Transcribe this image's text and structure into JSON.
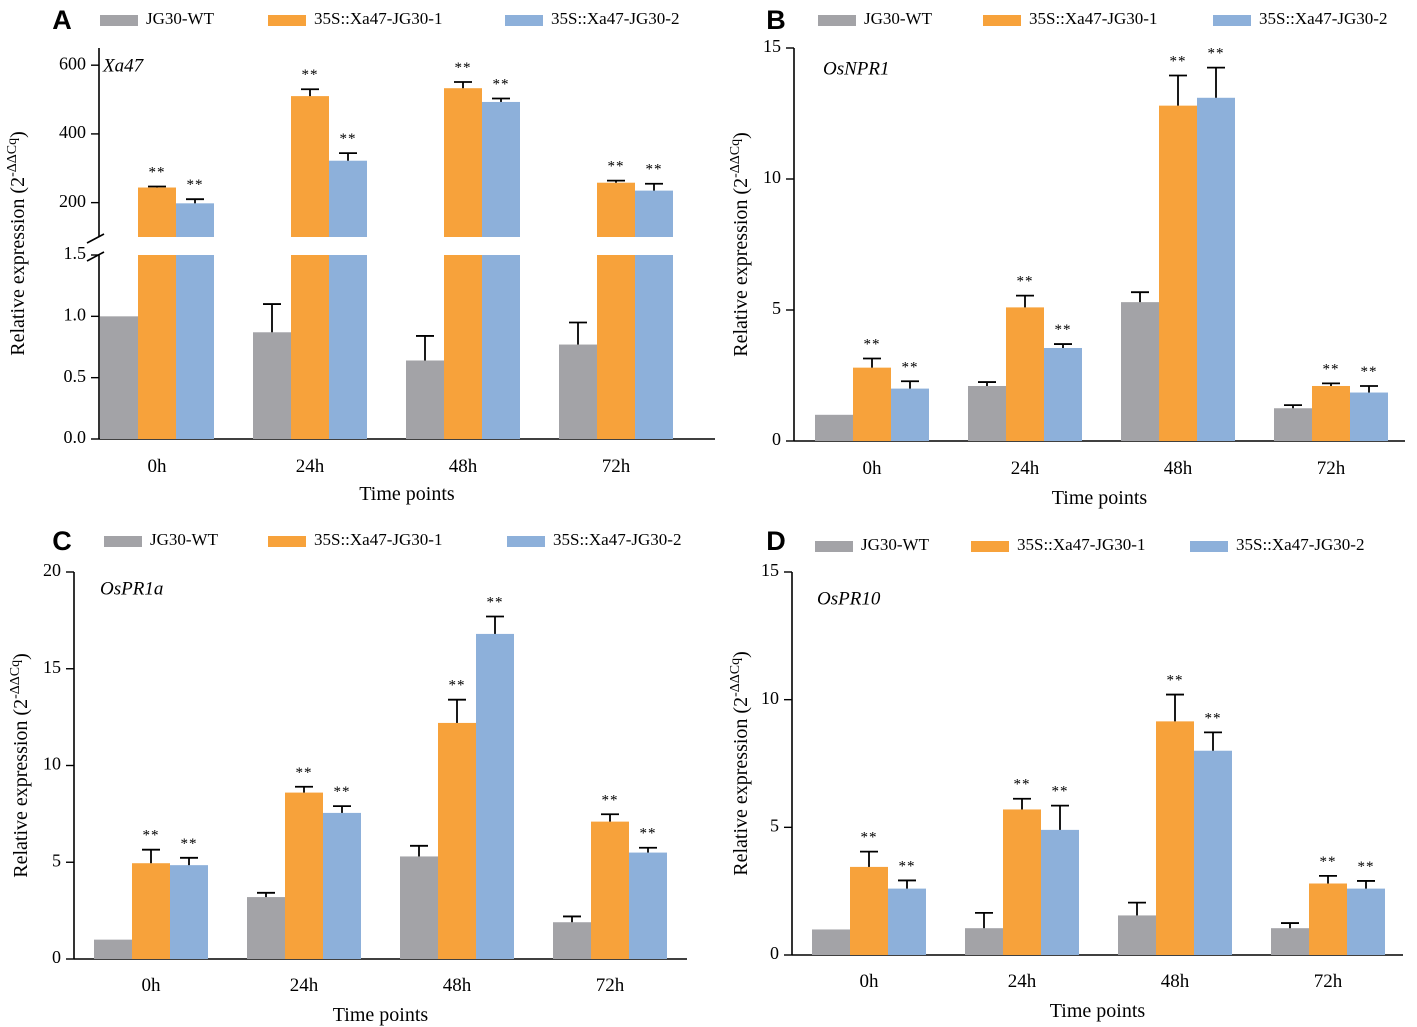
{
  "legend": [
    "JG30-WT",
    "35S::Xa47-JG30-1",
    "35S::Xa47-JG30-2"
  ],
  "colors": [
    "#a3a3a7",
    "#f7a23b",
    "#8db0da"
  ],
  "chart_data": [
    {
      "panel": "A",
      "type": "bar",
      "gene": "Xa47",
      "xlabel": "Time points",
      "ylabel": "Relative expression (2",
      "ylabel_sup": "-ΔΔCq",
      "ylabel_close": ")",
      "categories": [
        "0h",
        "24h",
        "48h",
        "72h"
      ],
      "broken_axis": true,
      "lower_ylim": [
        0,
        1.5
      ],
      "lower_ticks": [
        "0.0",
        "0.5",
        "1.0",
        "1.5"
      ],
      "upper_ylim": [
        100,
        650
      ],
      "upper_ticks": [
        "200",
        "400",
        "600"
      ],
      "series": [
        {
          "name": "JG30-WT",
          "values": [
            1.0,
            0.87,
            0.64,
            0.77
          ],
          "errors": [
            0.0,
            0.23,
            0.2,
            0.18
          ],
          "sig": [
            "",
            "",
            "",
            ""
          ]
        },
        {
          "name": "35S::Xa47-JG30-1",
          "values": [
            244,
            510,
            533,
            258
          ],
          "errors": [
            3,
            20,
            18,
            6
          ],
          "sig": [
            "**",
            "**",
            "**",
            "**"
          ]
        },
        {
          "name": "35S::Xa47-JG30-2",
          "values": [
            198,
            322,
            493,
            235
          ],
          "errors": [
            12,
            22,
            10,
            20
          ],
          "sig": [
            "**",
            "**",
            "**",
            "**"
          ]
        }
      ]
    },
    {
      "panel": "B",
      "type": "bar",
      "gene": "OsNPR1",
      "xlabel": "Time points",
      "ylabel": "Relative expression (2",
      "ylabel_sup": "-ΔΔCq",
      "ylabel_close": ")",
      "categories": [
        "0h",
        "24h",
        "48h",
        "72h"
      ],
      "ylim": [
        0,
        15
      ],
      "yticks": [
        0,
        5,
        10,
        15
      ],
      "series": [
        {
          "name": "JG30-WT",
          "values": [
            1.0,
            2.1,
            5.3,
            1.25
          ],
          "errors": [
            0.0,
            0.15,
            0.38,
            0.12
          ],
          "sig": [
            "",
            "",
            "",
            ""
          ]
        },
        {
          "name": "35S::Xa47-JG30-1",
          "values": [
            2.8,
            5.1,
            12.8,
            2.1
          ],
          "errors": [
            0.35,
            0.45,
            1.15,
            0.1
          ],
          "sig": [
            "**",
            "**",
            "**",
            "**"
          ]
        },
        {
          "name": "35S::Xa47-JG30-2",
          "values": [
            2.0,
            3.55,
            13.1,
            1.85
          ],
          "errors": [
            0.28,
            0.15,
            1.15,
            0.25
          ],
          "sig": [
            "**",
            "**",
            "**",
            "**"
          ]
        }
      ]
    },
    {
      "panel": "C",
      "type": "bar",
      "gene": "OsPR1a",
      "xlabel": "Time points",
      "ylabel": "Relative expression (2",
      "ylabel_sup": "-ΔΔCq",
      "ylabel_close": ")",
      "categories": [
        "0h",
        "24h",
        "48h",
        "72h"
      ],
      "ylim": [
        0,
        20
      ],
      "yticks": [
        0,
        5,
        10,
        15,
        20
      ],
      "series": [
        {
          "name": "JG30-WT",
          "values": [
            1.0,
            3.2,
            5.3,
            1.9
          ],
          "errors": [
            0.0,
            0.22,
            0.55,
            0.3
          ],
          "sig": [
            "",
            "",
            "",
            ""
          ]
        },
        {
          "name": "35S::Xa47-JG30-1",
          "values": [
            4.95,
            8.6,
            12.2,
            7.1
          ],
          "errors": [
            0.7,
            0.3,
            1.2,
            0.38
          ],
          "sig": [
            "**",
            "**",
            "**",
            "**"
          ]
        },
        {
          "name": "35S::Xa47-JG30-2",
          "values": [
            4.85,
            7.55,
            16.8,
            5.5
          ],
          "errors": [
            0.38,
            0.35,
            0.9,
            0.25
          ],
          "sig": [
            "**",
            "**",
            "**",
            "**"
          ]
        }
      ]
    },
    {
      "panel": "D",
      "type": "bar",
      "gene": "OsPR10",
      "xlabel": "Time points",
      "ylabel": "Relative expression (2",
      "ylabel_sup": "-ΔΔCq",
      "ylabel_close": ")",
      "categories": [
        "0h",
        "24h",
        "48h",
        "72h"
      ],
      "ylim": [
        0,
        15
      ],
      "yticks": [
        0,
        5,
        10,
        15
      ],
      "series": [
        {
          "name": "JG30-WT",
          "values": [
            1.0,
            1.05,
            1.55,
            1.05
          ],
          "errors": [
            0.0,
            0.6,
            0.5,
            0.2
          ],
          "sig": [
            "",
            "",
            "",
            ""
          ]
        },
        {
          "name": "35S::Xa47-JG30-1",
          "values": [
            3.45,
            5.7,
            9.15,
            2.8
          ],
          "errors": [
            0.6,
            0.42,
            1.05,
            0.3
          ],
          "sig": [
            "**",
            "**",
            "**",
            "**"
          ]
        },
        {
          "name": "35S::Xa47-JG30-2",
          "values": [
            2.6,
            4.9,
            8.0,
            2.6
          ],
          "errors": [
            0.32,
            0.95,
            0.72,
            0.3
          ],
          "sig": [
            "**",
            "**",
            "**",
            "**"
          ]
        }
      ]
    }
  ]
}
